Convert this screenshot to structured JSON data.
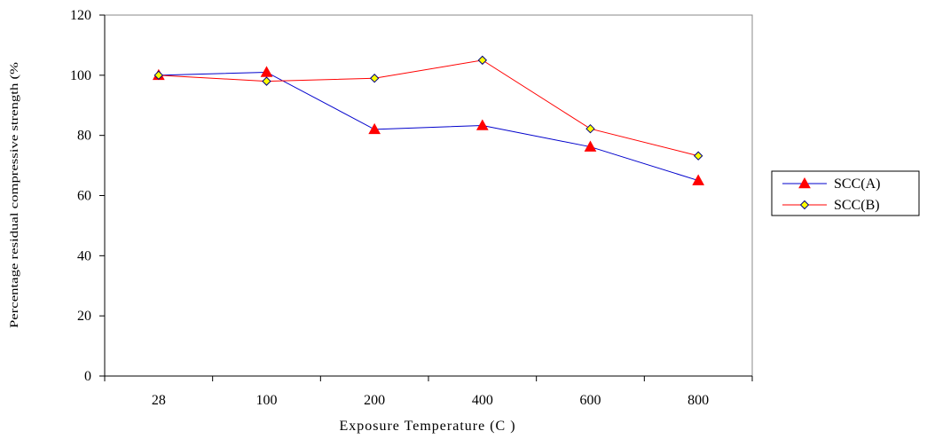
{
  "chart_data": {
    "type": "line",
    "categories": [
      "28",
      "100",
      "200",
      "400",
      "600",
      "800"
    ],
    "series": [
      {
        "name": "SCC(A)",
        "values": [
          100,
          101,
          82,
          83.3,
          76.2,
          65
        ],
        "color": "#0000cc",
        "marker": "triangle",
        "marker_color": "#ff0000"
      },
      {
        "name": "SCC(B)",
        "values": [
          100,
          98,
          99,
          105,
          82.2,
          73.2
        ],
        "color": "#ff0000",
        "marker": "diamond",
        "marker_color": "#ffff00"
      }
    ],
    "xlabel": "Exposure Temperature (C )",
    "ylabel": "Percentage residual compressive strength (%",
    "yticks": [
      "0",
      "20",
      "40",
      "60",
      "80",
      "100",
      "120"
    ],
    "ylim": [
      0,
      120
    ],
    "grid": false,
    "legend_position": "right"
  }
}
